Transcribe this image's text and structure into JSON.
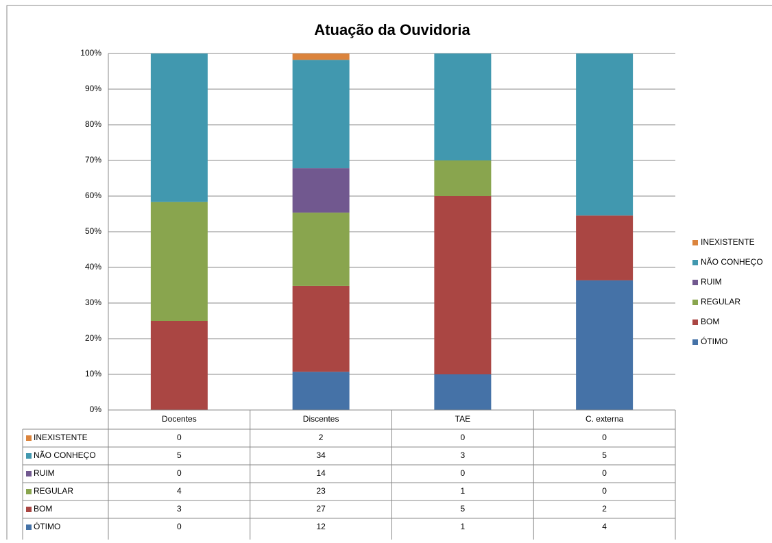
{
  "chart_data": {
    "type": "bar",
    "stacking": "percent",
    "title": "Atuação da Ouvidoria",
    "categories": [
      "Docentes",
      "Discentes",
      "TAE",
      "C. externa"
    ],
    "series": [
      {
        "name": "ÓTIMO",
        "color": "#4572a7",
        "values": [
          0,
          12,
          1,
          4
        ]
      },
      {
        "name": "BOM",
        "color": "#aa4643",
        "values": [
          3,
          27,
          5,
          2
        ]
      },
      {
        "name": "REGULAR",
        "color": "#89a54e",
        "values": [
          4,
          23,
          1,
          0
        ]
      },
      {
        "name": "RUIM",
        "color": "#71588f",
        "values": [
          0,
          14,
          0,
          0
        ]
      },
      {
        "name": "NÃO CONHEÇO",
        "color": "#4198af",
        "values": [
          5,
          34,
          3,
          5
        ]
      },
      {
        "name": "INEXISTENTE",
        "color": "#db843d",
        "values": [
          0,
          2,
          0,
          0
        ]
      }
    ],
    "ylim": [
      0,
      100
    ],
    "yticks": [
      {
        "value": 0,
        "label": "0%"
      },
      {
        "value": 10,
        "label": "10%"
      },
      {
        "value": 20,
        "label": "20%"
      },
      {
        "value": 30,
        "label": "30%"
      },
      {
        "value": 40,
        "label": "40%"
      },
      {
        "value": 50,
        "label": "50%"
      },
      {
        "value": 60,
        "label": "60%"
      },
      {
        "value": 70,
        "label": "70%"
      },
      {
        "value": 80,
        "label": "80%"
      },
      {
        "value": 90,
        "label": "90%"
      },
      {
        "value": 100,
        "label": "100%"
      }
    ],
    "grid": true,
    "legend": "right",
    "data_table": true
  }
}
